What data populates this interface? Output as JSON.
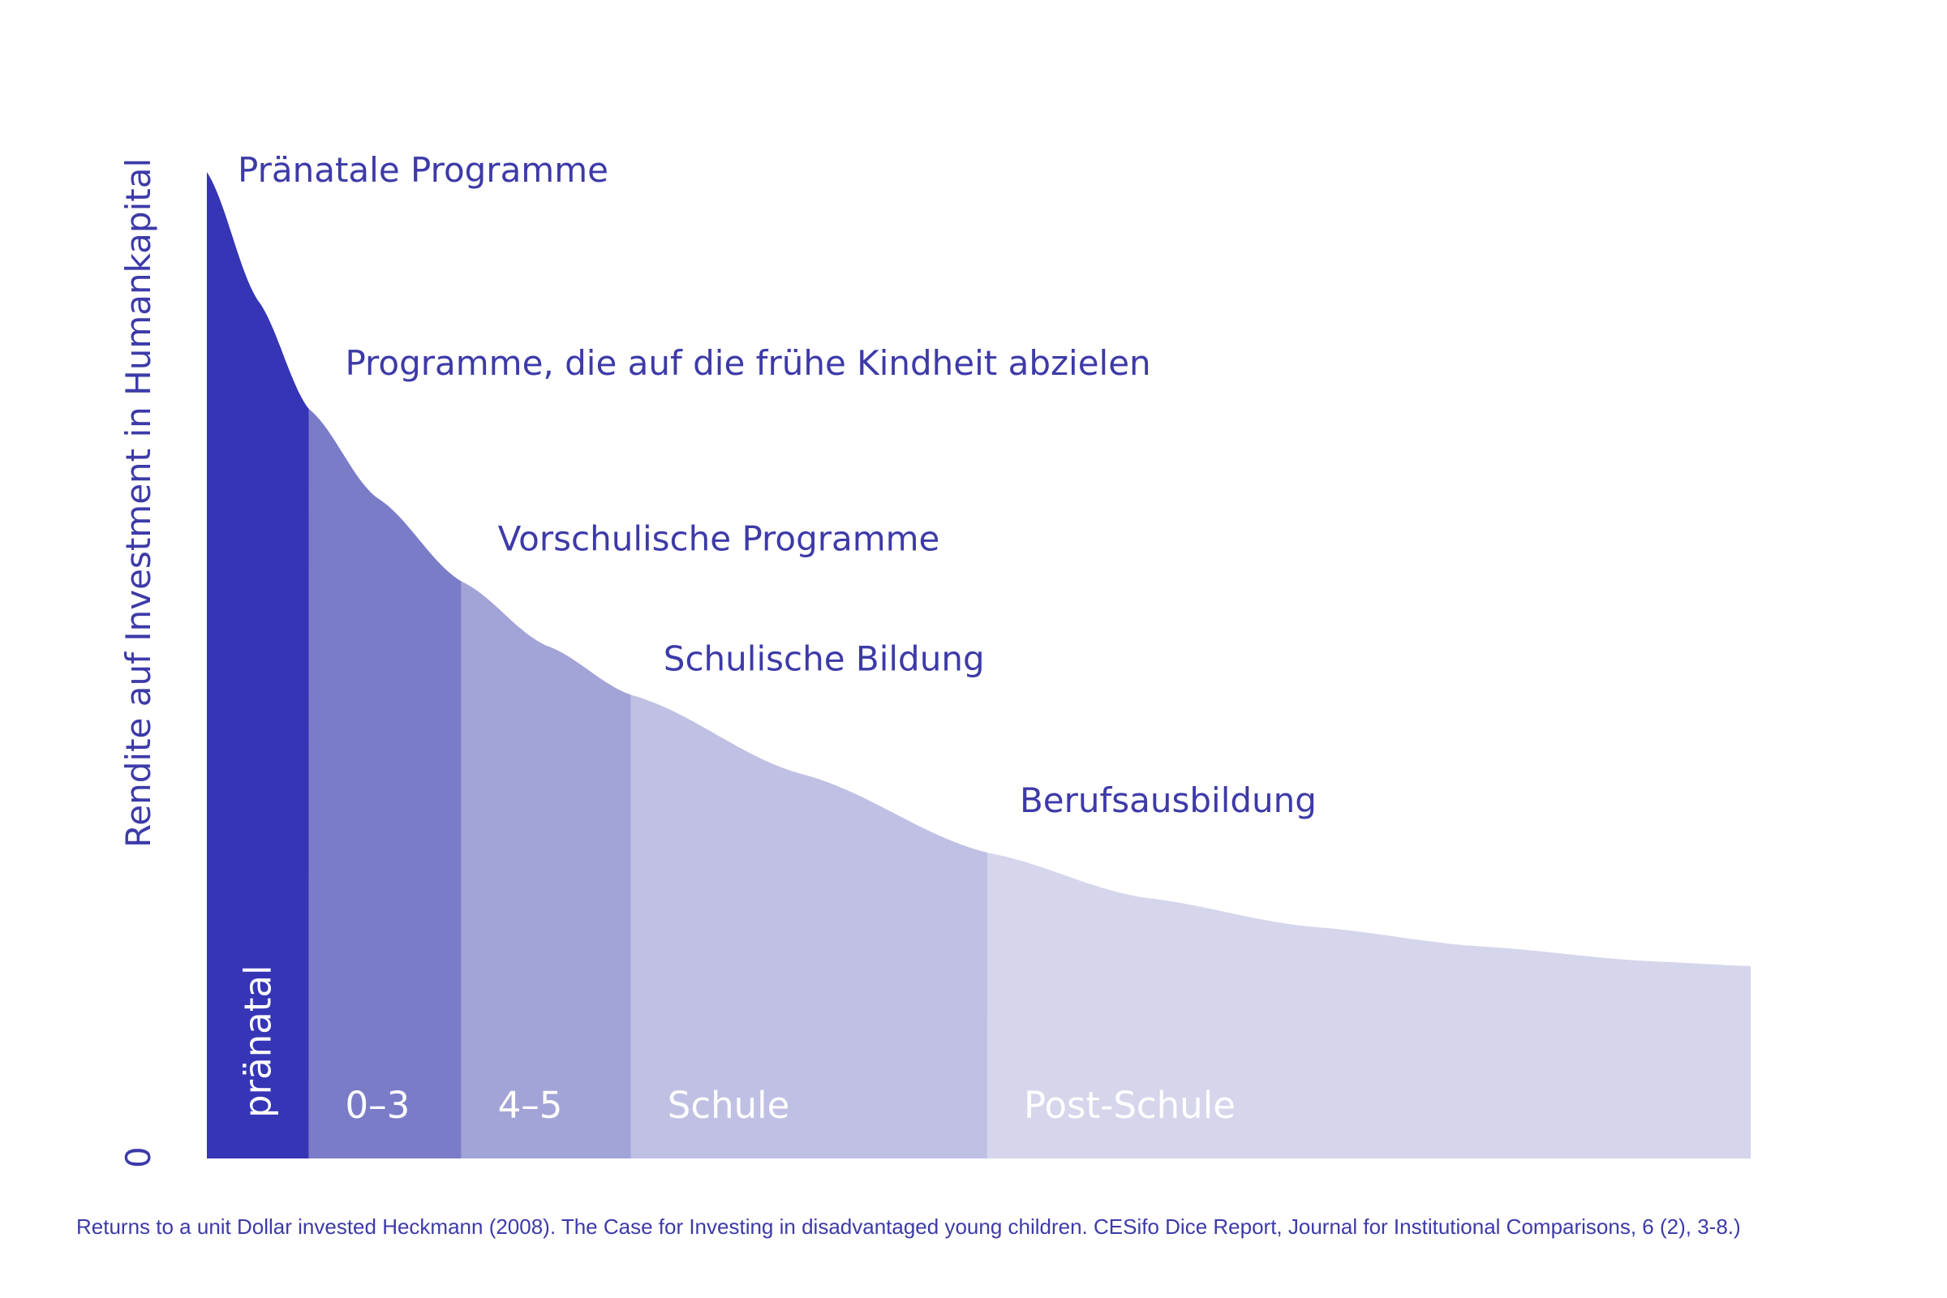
{
  "chart_data": {
    "type": "area",
    "title": "",
    "ylabel": "Rendite auf Investment in Humankapital",
    "y_zero_label": "0",
    "bands": [
      {
        "name": "pränatal",
        "curve_label": "Pränatale Programme",
        "color": "#3535b5",
        "start": 0.0,
        "end": 0.6
      },
      {
        "name": "0–3",
        "curve_label": "Programme, die auf die frühe Kindheit abzielen",
        "color": "#7b7cc8",
        "start": 0.6,
        "end": 1.5
      },
      {
        "name": "4–5",
        "curve_label": "Vorschulische Programme",
        "color": "#a2a3d6",
        "start": 1.5,
        "end": 2.5
      },
      {
        "name": "Schule",
        "curve_label": "Schulische Bildung",
        "color": "#bfc0e3",
        "start": 2.5,
        "end": 4.6
      },
      {
        "name": "Post-Schule",
        "curve_label": "Berufsausbildung",
        "color": "#d5d6ec",
        "start": 4.6,
        "end": 9.1
      }
    ],
    "curve": {
      "x": [
        0.0,
        0.3,
        0.6,
        1.0,
        1.5,
        2.0,
        2.5,
        3.5,
        4.6,
        5.5,
        6.5,
        7.5,
        8.5,
        9.1
      ],
      "y": [
        1.0,
        0.87,
        0.76,
        0.67,
        0.585,
        0.52,
        0.47,
        0.39,
        0.31,
        0.265,
        0.235,
        0.215,
        0.2,
        0.195
      ]
    },
    "grid": false,
    "legend": "none"
  },
  "caption": "Returns to a unit Dollar invested Heckmann (2008). The Case for Investing in disadvantaged young children. CESifo Dice Report, Journal for Institutional Comparisons, 6 (2), 3-8.)"
}
